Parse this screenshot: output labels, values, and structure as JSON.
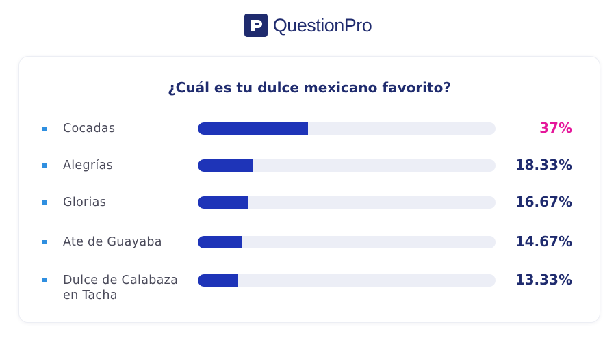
{
  "brand": {
    "name": "QuestionPro"
  },
  "chart_data": {
    "type": "bar",
    "title": "¿Cuál es tu dulce mexicano favorito?",
    "categories": [
      "Cocadas",
      "Alegrías",
      "Glorias",
      "Ate de Guayaba",
      "Dulce de Calabaza en Tacha"
    ],
    "values": [
      37,
      18.33,
      16.67,
      14.67,
      13.33
    ],
    "value_labels": [
      "37%",
      "18.33%",
      "16.67%",
      "14.67%",
      "13.33%"
    ],
    "orientation": "horizontal",
    "highlight_index": 0
  },
  "colors": {
    "bar": "#1e34b8",
    "track": "#eceef6",
    "value_text": "#1f2b6e",
    "highlight_text": "#e5179b",
    "bullet": "#2f8fe0",
    "brand": "#1f2b6e"
  }
}
